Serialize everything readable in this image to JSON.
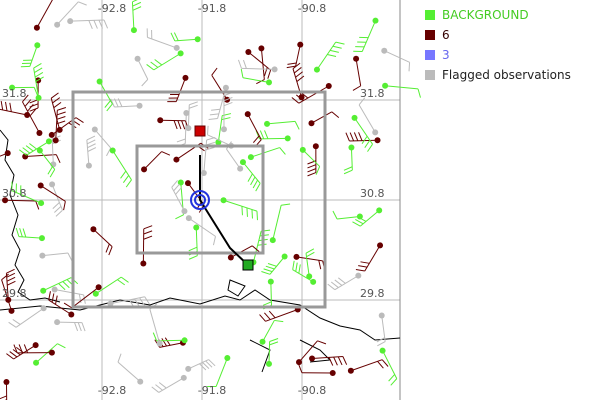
{
  "map": {
    "lon_labels_top": [
      "-92.8",
      "-91.8",
      "-90.8"
    ],
    "lon_labels_bottom": [
      "-92.8",
      "-91.8",
      "-90.8"
    ],
    "lat_labels_left": [
      "31.8",
      "30.8",
      "29.8"
    ],
    "lat_labels_right": [
      "31.8",
      "30.8",
      "29.8"
    ]
  },
  "legend": {
    "items": [
      {
        "label": "BACKGROUND",
        "color": "#55ee33",
        "text_color": "#44cc22"
      },
      {
        "label": "6",
        "color": "#660000",
        "text_color": "#330000"
      },
      {
        "label": "3",
        "color": "#7777ff",
        "text_color": "#6666ee"
      },
      {
        "label": "Flagged observations",
        "color": "#bbbbbb",
        "text_color": "#222222"
      }
    ]
  }
}
